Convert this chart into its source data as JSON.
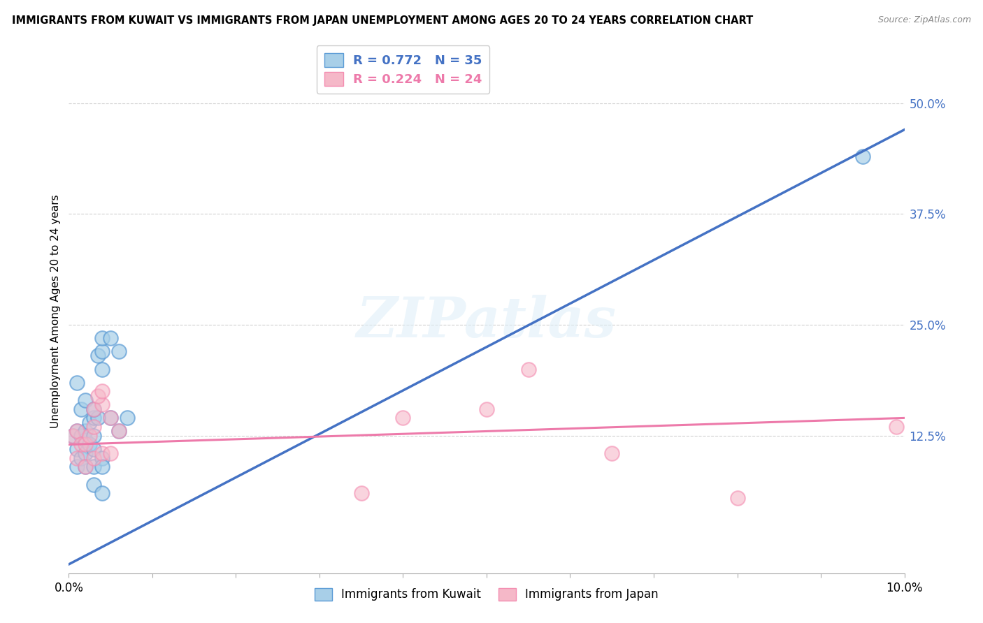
{
  "title": "IMMIGRANTS FROM KUWAIT VS IMMIGRANTS FROM JAPAN UNEMPLOYMENT AMONG AGES 20 TO 24 YEARS CORRELATION CHART",
  "source": "Source: ZipAtlas.com",
  "ylabel": "Unemployment Among Ages 20 to 24 years",
  "xlim": [
    0.0,
    0.1
  ],
  "ylim": [
    -0.03,
    0.56
  ],
  "xticks": [
    0.0,
    0.01,
    0.02,
    0.03,
    0.04,
    0.05,
    0.06,
    0.07,
    0.08,
    0.09,
    0.1
  ],
  "xticklabels": [
    "0.0%",
    "",
    "",
    "",
    "",
    "",
    "",
    "",
    "",
    "",
    "10.0%"
  ],
  "yticks_right": [
    0.125,
    0.25,
    0.375,
    0.5
  ],
  "ytick_labels_right": [
    "12.5%",
    "25.0%",
    "37.5%",
    "50.0%"
  ],
  "kuwait_color": "#a8cfe8",
  "japan_color": "#f5b8c8",
  "kuwait_edge_color": "#5b9bd5",
  "japan_edge_color": "#f48cb1",
  "kuwait_line_color": "#4472c4",
  "japan_line_color": "#ed7aaa",
  "legend_label_kuwait": "R = 0.772   N = 35",
  "legend_label_japan": "R = 0.224   N = 24",
  "legend_bottom_kuwait": "Immigrants from Kuwait",
  "legend_bottom_japan": "Immigrants from Japan",
  "watermark": "ZIPatlas",
  "kuwait_line_x0": 0.0,
  "kuwait_line_y0": -0.02,
  "kuwait_line_x1": 0.1,
  "kuwait_line_y1": 0.47,
  "japan_line_x0": 0.0,
  "japan_line_y0": 0.115,
  "japan_line_x1": 0.1,
  "japan_line_y1": 0.145,
  "kuwait_x": [
    0.0005,
    0.001,
    0.001,
    0.001,
    0.0015,
    0.0015,
    0.002,
    0.002,
    0.002,
    0.002,
    0.0025,
    0.0025,
    0.003,
    0.003,
    0.003,
    0.003,
    0.003,
    0.0035,
    0.004,
    0.004,
    0.004,
    0.004,
    0.005,
    0.005,
    0.006,
    0.006,
    0.007,
    0.0035,
    0.004,
    0.001,
    0.0015,
    0.002,
    0.003,
    0.004,
    0.095
  ],
  "kuwait_y": [
    0.125,
    0.09,
    0.11,
    0.13,
    0.1,
    0.125,
    0.09,
    0.105,
    0.12,
    0.13,
    0.115,
    0.14,
    0.07,
    0.09,
    0.11,
    0.125,
    0.145,
    0.215,
    0.2,
    0.22,
    0.235,
    0.1,
    0.145,
    0.235,
    0.22,
    0.13,
    0.145,
    0.145,
    0.09,
    0.185,
    0.155,
    0.165,
    0.155,
    0.06,
    0.44
  ],
  "japan_x": [
    0.0005,
    0.001,
    0.001,
    0.0015,
    0.002,
    0.002,
    0.0025,
    0.003,
    0.003,
    0.003,
    0.004,
    0.004,
    0.005,
    0.006,
    0.0035,
    0.004,
    0.005,
    0.035,
    0.04,
    0.05,
    0.055,
    0.065,
    0.08,
    0.099
  ],
  "japan_y": [
    0.125,
    0.1,
    0.13,
    0.115,
    0.09,
    0.115,
    0.125,
    0.1,
    0.135,
    0.155,
    0.105,
    0.16,
    0.145,
    0.13,
    0.17,
    0.175,
    0.105,
    0.06,
    0.145,
    0.155,
    0.2,
    0.105,
    0.055,
    0.135
  ],
  "background_color": "#ffffff",
  "grid_color": "#d0d0d0"
}
